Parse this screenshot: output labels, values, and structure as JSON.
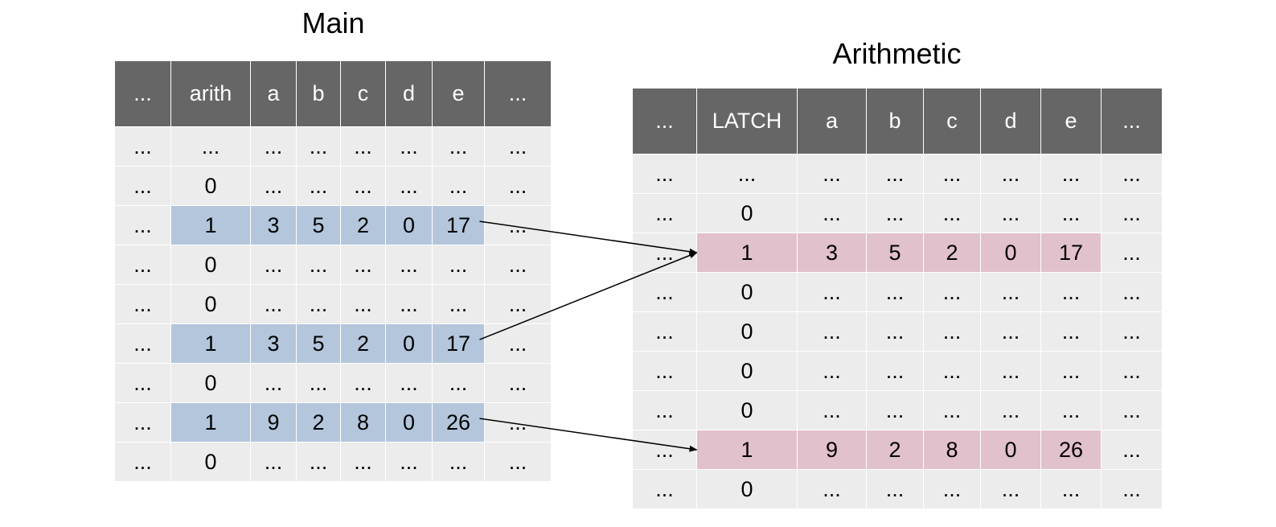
{
  "titles": {
    "main": "Main",
    "arith": "Arithmetic"
  },
  "colors": {
    "header_bg": "#666666",
    "cell_bg": "#ececec",
    "main_highlight": "#b3c6dc",
    "arith_highlight": "#e1c1cb"
  },
  "main": {
    "headers": [
      "...",
      "arith",
      "a",
      "b",
      "c",
      "d",
      "e",
      "..."
    ],
    "rows": [
      {
        "h": false,
        "c": [
          "...",
          "...",
          "...",
          "...",
          "...",
          "...",
          "...",
          "..."
        ]
      },
      {
        "h": false,
        "c": [
          "...",
          "0",
          "...",
          "...",
          "...",
          "...",
          "...",
          "..."
        ]
      },
      {
        "h": true,
        "c": [
          "...",
          "1",
          "3",
          "5",
          "2",
          "0",
          "17",
          "..."
        ]
      },
      {
        "h": false,
        "c": [
          "...",
          "0",
          "...",
          "...",
          "...",
          "...",
          "...",
          "..."
        ]
      },
      {
        "h": false,
        "c": [
          "...",
          "0",
          "...",
          "...",
          "...",
          "...",
          "...",
          "..."
        ]
      },
      {
        "h": true,
        "c": [
          "...",
          "1",
          "3",
          "5",
          "2",
          "0",
          "17",
          "..."
        ]
      },
      {
        "h": false,
        "c": [
          "...",
          "0",
          "...",
          "...",
          "...",
          "...",
          "...",
          "..."
        ]
      },
      {
        "h": true,
        "c": [
          "...",
          "1",
          "9",
          "2",
          "8",
          "0",
          "26",
          "..."
        ]
      },
      {
        "h": false,
        "c": [
          "...",
          "0",
          "...",
          "...",
          "...",
          "...",
          "...",
          "..."
        ]
      }
    ]
  },
  "arith": {
    "headers": [
      "...",
      "LATCH",
      "a",
      "b",
      "c",
      "d",
      "e",
      "..."
    ],
    "rows": [
      {
        "h": false,
        "c": [
          "...",
          "...",
          "...",
          "...",
          "...",
          "...",
          "...",
          "..."
        ]
      },
      {
        "h": false,
        "c": [
          "...",
          "0",
          "...",
          "...",
          "...",
          "...",
          "...",
          "..."
        ]
      },
      {
        "h": true,
        "c": [
          "...",
          "1",
          "3",
          "5",
          "2",
          "0",
          "17",
          "..."
        ]
      },
      {
        "h": false,
        "c": [
          "...",
          "0",
          "...",
          "...",
          "...",
          "...",
          "...",
          "..."
        ]
      },
      {
        "h": false,
        "c": [
          "...",
          "0",
          "...",
          "...",
          "...",
          "...",
          "...",
          "..."
        ]
      },
      {
        "h": false,
        "c": [
          "...",
          "0",
          "...",
          "...",
          "...",
          "...",
          "...",
          "..."
        ]
      },
      {
        "h": false,
        "c": [
          "...",
          "0",
          "...",
          "...",
          "...",
          "...",
          "...",
          "..."
        ]
      },
      {
        "h": true,
        "c": [
          "...",
          "1",
          "9",
          "2",
          "8",
          "0",
          "26",
          "..."
        ]
      },
      {
        "h": false,
        "c": [
          "...",
          "0",
          "...",
          "...",
          "...",
          "...",
          "...",
          "..."
        ]
      }
    ]
  },
  "links": [
    {
      "from_row": 2,
      "to_row": 2
    },
    {
      "from_row": 5,
      "to_row": 2
    },
    {
      "from_row": 7,
      "to_row": 7
    }
  ]
}
